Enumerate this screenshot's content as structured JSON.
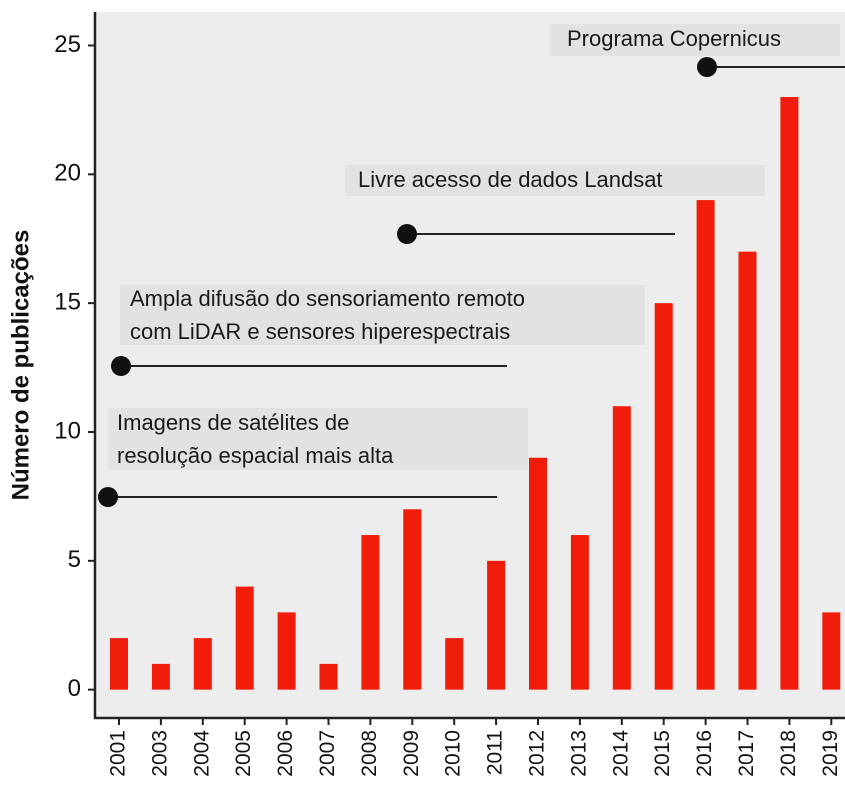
{
  "chart_data": {
    "type": "bar",
    "y_label": "Número de publicações",
    "categories": [
      "2001",
      "2003",
      "2004",
      "2005",
      "2006",
      "2007",
      "2008",
      "2009",
      "2010",
      "2011",
      "2012",
      "2013",
      "2014",
      "2015",
      "2016",
      "2017",
      "2018",
      "2019"
    ],
    "values": [
      2,
      1,
      2,
      4,
      3,
      1,
      6,
      7,
      2,
      5,
      9,
      6,
      11,
      15,
      19,
      17,
      23,
      3
    ],
    "color": "#f21c0a",
    "ylim": [
      -1.1,
      26.3
    ],
    "yticks": [
      0,
      5,
      10,
      15,
      20,
      25
    ],
    "annotations": [
      {
        "lines": [
          "Imagens de satélites de",
          "resolução espacial mais alta"
        ]
      },
      {
        "lines": [
          "Ampla difusão do sensoriamento remoto",
          "com LiDAR e sensores hiperespectrais"
        ]
      },
      {
        "lines": [
          "Livre acesso de dados Landsat"
        ]
      },
      {
        "lines": [
          "Programa Copernicus"
        ]
      }
    ]
  }
}
